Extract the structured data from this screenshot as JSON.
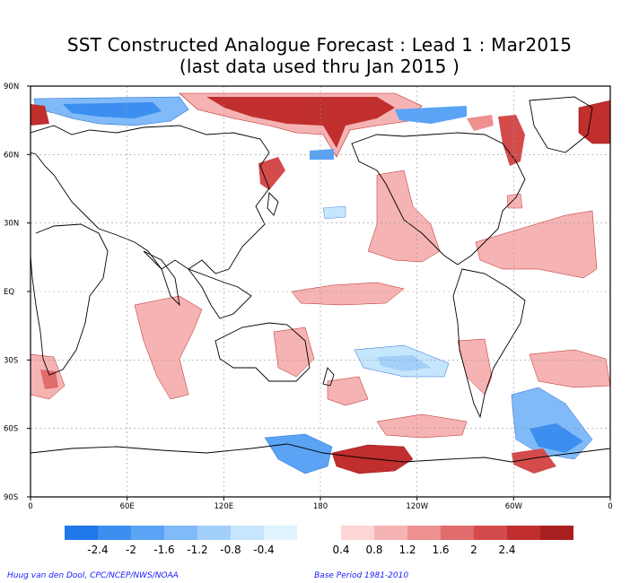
{
  "title_line1": "SST Constructed Analogue Forecast : Lead 1 : Mar2015",
  "title_line2": "(last data used thru Jan 2015 )",
  "credit_left": "Huug van den Dool, CPC/NCEP/NWS/NOAA",
  "credit_right": "Base Period 1981-2010",
  "lat_labels": [
    "90N",
    "60N",
    "30N",
    "EQ",
    "30S",
    "60S",
    "90S"
  ],
  "lon_labels": [
    "0",
    "60E",
    "120E",
    "180",
    "120W",
    "60W",
    "0"
  ],
  "colorbar": {
    "negative_colors": [
      "#1f78e8",
      "#3c8ef0",
      "#5aa3f5",
      "#80baf8",
      "#a3d0fa",
      "#c5e6fc",
      "#dff4ff"
    ],
    "negative_labels": [
      "-2.4",
      "-2",
      "-1.6",
      "-1.2",
      "-0.8",
      "-0.4"
    ],
    "positive_colors": [
      "#fdd5d5",
      "#f6b3b3",
      "#ee9090",
      "#e06c6c",
      "#d44b4b",
      "#c02e2e",
      "#a81f1f"
    ],
    "positive_labels": [
      "0.4",
      "0.8",
      "1.2",
      "1.6",
      "2",
      "2.4"
    ]
  },
  "map_colors": {
    "land_outline": "#000000",
    "grid": "#999999"
  }
}
